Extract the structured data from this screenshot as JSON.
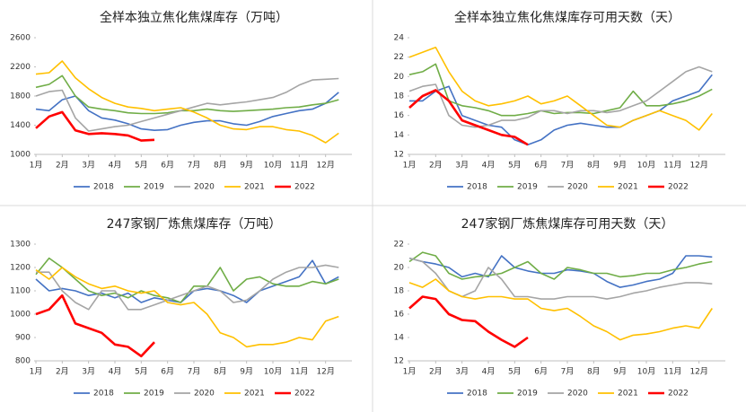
{
  "chart_data": [
    {
      "type": "line",
      "title": "全样本独立焦化焦煤库存（万吨）",
      "x": [
        1,
        1.5,
        2,
        2.5,
        3,
        3.5,
        4,
        4.5,
        5,
        5.5,
        6,
        6.5,
        7,
        7.5,
        8,
        8.5,
        9,
        9.5,
        10,
        10.5,
        11,
        11.5,
        12,
        12.5
      ],
      "xlim": [
        1,
        13
      ],
      "xticks": [
        {
          "value": 1,
          "label": "1月"
        },
        {
          "value": 2,
          "label": "2月"
        },
        {
          "value": 3,
          "label": "3月"
        },
        {
          "value": 4,
          "label": "4月"
        },
        {
          "value": 5,
          "label": "5月"
        },
        {
          "value": 6,
          "label": "6月"
        },
        {
          "value": 7,
          "label": "7月"
        },
        {
          "value": 8,
          "label": "8月"
        },
        {
          "value": 9,
          "label": "9月"
        },
        {
          "value": 10,
          "label": "10月"
        },
        {
          "value": 11,
          "label": "11月"
        },
        {
          "value": 12,
          "label": "12月"
        }
      ],
      "ylim": [
        1000,
        2600
      ],
      "yticks": [
        1000,
        1400,
        1800,
        2200,
        2600
      ],
      "series": [
        {
          "name": "2018",
          "color": "#4472c4",
          "values": [
            1620,
            1600,
            1750,
            1800,
            1600,
            1500,
            1470,
            1420,
            1350,
            1330,
            1340,
            1400,
            1440,
            1460,
            1460,
            1420,
            1400,
            1450,
            1520,
            1560,
            1600,
            1620,
            1700,
            1850
          ]
        },
        {
          "name": "2019",
          "color": "#70ad47",
          "values": [
            1920,
            1960,
            2080,
            1800,
            1650,
            1620,
            1600,
            1570,
            1560,
            1560,
            1570,
            1600,
            1600,
            1620,
            1600,
            1590,
            1600,
            1610,
            1620,
            1640,
            1650,
            1680,
            1700,
            1750
          ]
        },
        {
          "name": "2020",
          "color": "#a5a5a5",
          "values": [
            1800,
            1860,
            1880,
            1500,
            1320,
            1350,
            1380,
            1400,
            1450,
            1500,
            1550,
            1600,
            1650,
            1700,
            1680,
            1700,
            1720,
            1750,
            1780,
            1850,
            1950,
            2020,
            2030,
            2040
          ]
        },
        {
          "name": "2021",
          "color": "#ffc000",
          "values": [
            2100,
            2120,
            2280,
            2050,
            1900,
            1780,
            1700,
            1650,
            1630,
            1600,
            1620,
            1640,
            1580,
            1500,
            1400,
            1350,
            1340,
            1380,
            1380,
            1340,
            1320,
            1260,
            1160,
            1290
          ]
        },
        {
          "name": "2022",
          "color": "#ff0000",
          "values": [
            1360,
            1520,
            1580,
            1330,
            1280,
            1290,
            1280,
            1260,
            1190,
            1200,
            null,
            null,
            null,
            null,
            null,
            null,
            null,
            null,
            null,
            null,
            null,
            null,
            null,
            null
          ]
        }
      ]
    },
    {
      "type": "line",
      "title": "全样本独立焦化焦煤库存可用天数（天）",
      "x": [
        1,
        1.5,
        2,
        2.5,
        3,
        3.5,
        4,
        4.5,
        5,
        5.5,
        6,
        6.5,
        7,
        7.5,
        8,
        8.5,
        9,
        9.5,
        10,
        10.5,
        11,
        11.5,
        12,
        12.5
      ],
      "xlim": [
        1,
        13
      ],
      "xticks": [
        {
          "value": 1,
          "label": "1月"
        },
        {
          "value": 2,
          "label": "2月"
        },
        {
          "value": 3,
          "label": "3月"
        },
        {
          "value": 4,
          "label": "4月"
        },
        {
          "value": 5,
          "label": "5月"
        },
        {
          "value": 6,
          "label": "6月"
        },
        {
          "value": 7,
          "label": "7月"
        },
        {
          "value": 8,
          "label": "8月"
        },
        {
          "value": 9,
          "label": "9月"
        },
        {
          "value": 10,
          "label": "10月"
        },
        {
          "value": 11,
          "label": "11月"
        },
        {
          "value": 12,
          "label": "12月"
        }
      ],
      "ylim": [
        12,
        24
      ],
      "yticks": [
        12,
        14,
        16,
        18,
        20,
        22,
        24
      ],
      "series": [
        {
          "name": "2018",
          "color": "#4472c4",
          "values": [
            17.5,
            17.5,
            18.5,
            19,
            16,
            15.5,
            15,
            14.8,
            13.5,
            13,
            13.5,
            14.5,
            15,
            15.2,
            15,
            14.8,
            14.8,
            15.5,
            16,
            16.5,
            17.5,
            18,
            18.5,
            20.2
          ]
        },
        {
          "name": "2019",
          "color": "#70ad47",
          "values": [
            20.2,
            20.5,
            21.3,
            17.5,
            17,
            16.8,
            16.5,
            16,
            16,
            16.2,
            16.5,
            16.2,
            16.3,
            16.3,
            16.2,
            16.5,
            16.8,
            18.5,
            17,
            17,
            17.2,
            17.5,
            18,
            18.7
          ]
        },
        {
          "name": "2020",
          "color": "#a5a5a5",
          "values": [
            18.5,
            19,
            19.2,
            16,
            15,
            14.8,
            15,
            15.5,
            15.5,
            15.8,
            16.5,
            16.5,
            16.2,
            16.5,
            16.5,
            16.3,
            16.5,
            17,
            17.5,
            18.5,
            19.5,
            20.5,
            21,
            20.5
          ]
        },
        {
          "name": "2021",
          "color": "#ffc000",
          "values": [
            22,
            22.5,
            23,
            20.5,
            18.5,
            17.5,
            17,
            17.2,
            17.5,
            18,
            17.2,
            17.5,
            18,
            17,
            16,
            15,
            14.8,
            15.5,
            16,
            16.5,
            16,
            15.5,
            14.5,
            16.2
          ]
        },
        {
          "name": "2022",
          "color": "#ff0000",
          "values": [
            16.8,
            18,
            18.6,
            17.5,
            15.5,
            15,
            14.5,
            14,
            13.8,
            13,
            null,
            null,
            null,
            null,
            null,
            null,
            null,
            null,
            null,
            null,
            null,
            null,
            null,
            null
          ]
        }
      ]
    },
    {
      "type": "line",
      "title": "247家钢厂炼焦煤库存（万吨）",
      "x": [
        1,
        1.5,
        2,
        2.5,
        3,
        3.5,
        4,
        4.5,
        5,
        5.5,
        6,
        6.5,
        7,
        7.5,
        8,
        8.5,
        9,
        9.5,
        10,
        10.5,
        11,
        11.5,
        12,
        12.5
      ],
      "xlim": [
        1,
        13
      ],
      "xticks": [
        {
          "value": 1,
          "label": "1月"
        },
        {
          "value": 2,
          "label": "2月"
        },
        {
          "value": 3,
          "label": "3月"
        },
        {
          "value": 4,
          "label": "4月"
        },
        {
          "value": 5,
          "label": "5月"
        },
        {
          "value": 6,
          "label": "6月"
        },
        {
          "value": 7,
          "label": "7月"
        },
        {
          "value": 8,
          "label": "8月"
        },
        {
          "value": 9,
          "label": "9月"
        },
        {
          "value": 10,
          "label": "10月"
        },
        {
          "value": 11,
          "label": "11月"
        },
        {
          "value": 12,
          "label": "12月"
        }
      ],
      "ylim": [
        800,
        1300
      ],
      "yticks": [
        800,
        900,
        1000,
        1100,
        1200,
        1300
      ],
      "series": [
        {
          "name": "2018",
          "color": "#4472c4",
          "values": [
            1150,
            1100,
            1110,
            1100,
            1080,
            1090,
            1070,
            1090,
            1050,
            1070,
            1060,
            1050,
            1100,
            1110,
            1100,
            1080,
            1050,
            1100,
            1120,
            1140,
            1160,
            1230,
            1130,
            1160
          ]
        },
        {
          "name": "2019",
          "color": "#70ad47",
          "values": [
            1170,
            1240,
            1200,
            1150,
            1100,
            1080,
            1090,
            1070,
            1100,
            1080,
            1070,
            1050,
            1120,
            1120,
            1200,
            1100,
            1150,
            1160,
            1130,
            1120,
            1120,
            1140,
            1130,
            1150
          ]
        },
        {
          "name": "2020",
          "color": "#a5a5a5",
          "values": [
            1180,
            1180,
            1100,
            1050,
            1020,
            1100,
            1100,
            1020,
            1020,
            1040,
            1060,
            1080,
            1100,
            1120,
            1100,
            1050,
            1060,
            1100,
            1150,
            1180,
            1200,
            1200,
            1210,
            1200
          ]
        },
        {
          "name": "2021",
          "color": "#ffc000",
          "values": [
            1190,
            1150,
            1200,
            1160,
            1130,
            1110,
            1120,
            1100,
            1090,
            1100,
            1050,
            1040,
            1050,
            1000,
            920,
            900,
            860,
            870,
            870,
            880,
            900,
            890,
            970,
            990
          ]
        },
        {
          "name": "2022",
          "color": "#ff0000",
          "values": [
            1000,
            1020,
            1080,
            960,
            940,
            920,
            870,
            860,
            820,
            880,
            null,
            null,
            null,
            null,
            null,
            null,
            null,
            null,
            null,
            null,
            null,
            null,
            null,
            null
          ]
        }
      ]
    },
    {
      "type": "line",
      "title": "247家钢厂炼焦煤库存可用天数（天）",
      "x": [
        1,
        1.5,
        2,
        2.5,
        3,
        3.5,
        4,
        4.5,
        5,
        5.5,
        6,
        6.5,
        7,
        7.5,
        8,
        8.5,
        9,
        9.5,
        10,
        10.5,
        11,
        11.5,
        12,
        12.5
      ],
      "xlim": [
        1,
        13
      ],
      "xticks": [
        {
          "value": 1,
          "label": "1月"
        },
        {
          "value": 2,
          "label": "2月"
        },
        {
          "value": 3,
          "label": "3月"
        },
        {
          "value": 4,
          "label": "4月"
        },
        {
          "value": 5,
          "label": "5月"
        },
        {
          "value": 6,
          "label": "6月"
        },
        {
          "value": 7,
          "label": "7月"
        },
        {
          "value": 8,
          "label": "8月"
        },
        {
          "value": 9,
          "label": "9月"
        },
        {
          "value": 10,
          "label": "10月"
        },
        {
          "value": 11,
          "label": "11月"
        },
        {
          "value": 12,
          "label": "12月"
        }
      ],
      "ylim": [
        12,
        22
      ],
      "yticks": [
        12,
        14,
        16,
        18,
        20,
        22
      ],
      "series": [
        {
          "name": "2018",
          "color": "#4472c4",
          "values": [
            20.8,
            20.5,
            20.3,
            20,
            19.2,
            19.5,
            19.2,
            21,
            20,
            19.7,
            19.5,
            19.5,
            19.8,
            19.7,
            19.5,
            18.8,
            18.3,
            18.5,
            18.8,
            19,
            19.5,
            21,
            21,
            20.9
          ]
        },
        {
          "name": "2019",
          "color": "#70ad47",
          "values": [
            20.5,
            21.3,
            21,
            19.5,
            19,
            19.2,
            19.3,
            19.5,
            20,
            20.5,
            19.5,
            19,
            20,
            19.8,
            19.5,
            19.5,
            19.2,
            19.3,
            19.5,
            19.5,
            19.8,
            20,
            20.3,
            20.5
          ]
        },
        {
          "name": "2020",
          "color": "#a5a5a5",
          "values": [
            20.8,
            20.5,
            19.5,
            18,
            17.5,
            18,
            20,
            19,
            17.5,
            17.5,
            17.3,
            17.3,
            17.5,
            17.5,
            17.5,
            17.3,
            17.5,
            17.8,
            18,
            18.3,
            18.5,
            18.7,
            18.7,
            18.6
          ]
        },
        {
          "name": "2021",
          "color": "#ffc000",
          "values": [
            18.7,
            18.3,
            19,
            18,
            17.5,
            17.3,
            17.5,
            17.5,
            17.3,
            17.3,
            16.5,
            16.3,
            16.5,
            15.8,
            15,
            14.5,
            13.8,
            14.2,
            14.3,
            14.5,
            14.8,
            15,
            14.8,
            16.5
          ]
        },
        {
          "name": "2022",
          "color": "#ff0000",
          "values": [
            16.5,
            17.5,
            17.3,
            16,
            15.5,
            15.4,
            14.5,
            13.8,
            13.2,
            14.0,
            null,
            null,
            null,
            null,
            null,
            null,
            null,
            null,
            null,
            null,
            null,
            null,
            null,
            null
          ]
        }
      ]
    }
  ]
}
